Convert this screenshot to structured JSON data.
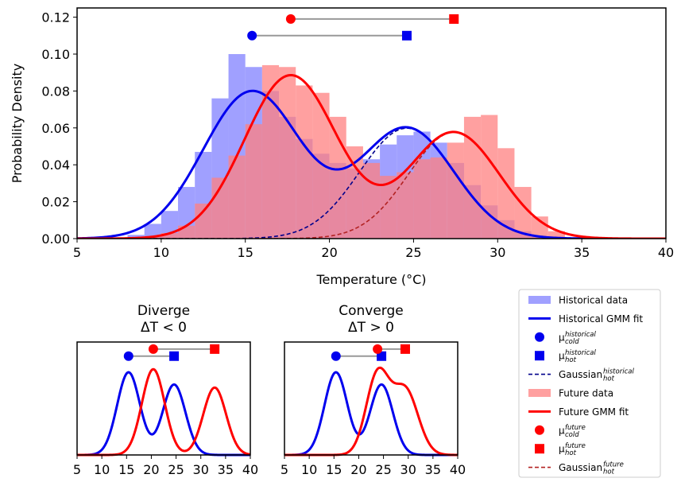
{
  "colors": {
    "historical": "#0000ee",
    "historical_hist": "#8080ff",
    "future": "#ff0000",
    "future_hist": "#ff8080",
    "historical_dashed": "#00008b",
    "future_dashed": "#b22222",
    "connector": "#999999"
  },
  "chart_data": [
    {
      "type": "bar",
      "title": "",
      "xlabel": "Temperature (°C)",
      "ylabel": "Probability Density",
      "xlim": [
        5,
        40
      ],
      "ylim": [
        0,
        0.125
      ],
      "xticks": [
        "5",
        "10",
        "15",
        "20",
        "25",
        "30",
        "35",
        "40"
      ],
      "yticks": [
        "0.00",
        "0.02",
        "0.04",
        "0.06",
        "0.08",
        "0.10",
        "0.12"
      ],
      "grid": false,
      "histogram_bin_width": 1,
      "series": [
        {
          "name": "Historical data",
          "kind": "histogram",
          "bins": [
            {
              "x0": 8,
              "x1": 9,
              "v": 0.002
            },
            {
              "x0": 9,
              "x1": 10,
              "v": 0.008
            },
            {
              "x0": 10,
              "x1": 11,
              "v": 0.015
            },
            {
              "x0": 11,
              "x1": 12,
              "v": 0.028
            },
            {
              "x0": 12,
              "x1": 13,
              "v": 0.047
            },
            {
              "x0": 13,
              "x1": 14,
              "v": 0.076
            },
            {
              "x0": 14,
              "x1": 15,
              "v": 0.1
            },
            {
              "x0": 15,
              "x1": 16,
              "v": 0.093
            },
            {
              "x0": 16,
              "x1": 17,
              "v": 0.08
            },
            {
              "x0": 17,
              "x1": 18,
              "v": 0.066
            },
            {
              "x0": 18,
              "x1": 19,
              "v": 0.054
            },
            {
              "x0": 19,
              "x1": 20,
              "v": 0.046
            },
            {
              "x0": 20,
              "x1": 21,
              "v": 0.041
            },
            {
              "x0": 21,
              "x1": 22,
              "v": 0.038
            },
            {
              "x0": 22,
              "x1": 23,
              "v": 0.043
            },
            {
              "x0": 23,
              "x1": 24,
              "v": 0.051
            },
            {
              "x0": 24,
              "x1": 25,
              "v": 0.056
            },
            {
              "x0": 25,
              "x1": 26,
              "v": 0.058
            },
            {
              "x0": 26,
              "x1": 27,
              "v": 0.052
            },
            {
              "x0": 27,
              "x1": 28,
              "v": 0.041
            },
            {
              "x0": 28,
              "x1": 29,
              "v": 0.029
            },
            {
              "x0": 29,
              "x1": 30,
              "v": 0.018
            },
            {
              "x0": 30,
              "x1": 31,
              "v": 0.01
            },
            {
              "x0": 31,
              "x1": 32,
              "v": 0.004
            },
            {
              "x0": 32,
              "x1": 33,
              "v": 0.001
            }
          ]
        },
        {
          "name": "Future data",
          "kind": "histogram",
          "bins": [
            {
              "x0": 9,
              "x1": 10,
              "v": 0.001
            },
            {
              "x0": 10,
              "x1": 11,
              "v": 0.003
            },
            {
              "x0": 11,
              "x1": 12,
              "v": 0.007
            },
            {
              "x0": 12,
              "x1": 13,
              "v": 0.019
            },
            {
              "x0": 13,
              "x1": 14,
              "v": 0.033
            },
            {
              "x0": 14,
              "x1": 15,
              "v": 0.045
            },
            {
              "x0": 15,
              "x1": 16,
              "v": 0.062
            },
            {
              "x0": 16,
              "x1": 17,
              "v": 0.094
            },
            {
              "x0": 17,
              "x1": 18,
              "v": 0.093
            },
            {
              "x0": 18,
              "x1": 19,
              "v": 0.083
            },
            {
              "x0": 19,
              "x1": 20,
              "v": 0.079
            },
            {
              "x0": 20,
              "x1": 21,
              "v": 0.066
            },
            {
              "x0": 21,
              "x1": 22,
              "v": 0.05
            },
            {
              "x0": 22,
              "x1": 23,
              "v": 0.041
            },
            {
              "x0": 23,
              "x1": 24,
              "v": 0.034
            },
            {
              "x0": 24,
              "x1": 25,
              "v": 0.036
            },
            {
              "x0": 25,
              "x1": 26,
              "v": 0.043
            },
            {
              "x0": 26,
              "x1": 27,
              "v": 0.044
            },
            {
              "x0": 27,
              "x1": 28,
              "v": 0.052
            },
            {
              "x0": 28,
              "x1": 29,
              "v": 0.066
            },
            {
              "x0": 29,
              "x1": 30,
              "v": 0.067
            },
            {
              "x0": 30,
              "x1": 31,
              "v": 0.049
            },
            {
              "x0": 31,
              "x1": 32,
              "v": 0.028
            },
            {
              "x0": 32,
              "x1": 33,
              "v": 0.012
            },
            {
              "x0": 33,
              "x1": 34,
              "v": 0.004
            }
          ]
        },
        {
          "name": "Historical GMM fit",
          "kind": "gmm",
          "components": [
            {
              "w": 0.58,
              "mu": 15.4,
              "sigma": 2.9
            },
            {
              "w": 0.42,
              "mu": 24.6,
              "sigma": 2.8
            }
          ]
        },
        {
          "name": "Future GMM fit",
          "kind": "gmm",
          "components": [
            {
              "w": 0.61,
              "mu": 17.7,
              "sigma": 2.75
            },
            {
              "w": 0.39,
              "mu": 27.4,
              "sigma": 2.7
            }
          ]
        },
        {
          "name": "Gaussian_hot^historical",
          "kind": "gaussian",
          "w": 0.42,
          "mu": 24.6,
          "sigma": 2.8
        },
        {
          "name": "Gaussian_hot^future",
          "kind": "gaussian",
          "w": 0.39,
          "mu": 27.4,
          "sigma": 2.7
        },
        {
          "name": "mu_cold^historical",
          "kind": "marker",
          "shape": "circle",
          "x": 15.4,
          "y": 0.11
        },
        {
          "name": "mu_hot^historical",
          "kind": "marker",
          "shape": "square",
          "x": 24.6,
          "y": 0.11
        },
        {
          "name": "mu_cold^future",
          "kind": "marker",
          "shape": "circle",
          "x": 17.7,
          "y": 0.119
        },
        {
          "name": "mu_hot^future",
          "kind": "marker",
          "shape": "square",
          "x": 27.4,
          "y": 0.119
        }
      ]
    },
    {
      "type": "line",
      "title": "Diverge",
      "subtitle": "ΔT < 0",
      "xlim": [
        5,
        40
      ],
      "ylim": [
        0,
        0.128
      ],
      "xticks": [
        "5",
        "10",
        "15",
        "20",
        "25",
        "30",
        "35",
        "40"
      ],
      "series": [
        {
          "name": "Historical",
          "kind": "gmm",
          "components": [
            {
              "w": 0.54,
              "mu": 15.4,
              "sigma": 2.3
            },
            {
              "w": 0.46,
              "mu": 24.6,
              "sigma": 2.3
            }
          ]
        },
        {
          "name": "Future",
          "kind": "gmm",
          "components": [
            {
              "w": 0.56,
              "mu": 20.4,
              "sigma": 2.3
            },
            {
              "w": 0.44,
              "mu": 32.8,
              "sigma": 2.3
            }
          ]
        },
        {
          "name": "mu_cold^historical",
          "kind": "marker",
          "shape": "circle",
          "x": 15.4,
          "y": 0.112
        },
        {
          "name": "mu_hot^historical",
          "kind": "marker",
          "shape": "square",
          "x": 24.6,
          "y": 0.112
        },
        {
          "name": "mu_cold^future",
          "kind": "marker",
          "shape": "circle",
          "x": 20.4,
          "y": 0.12
        },
        {
          "name": "mu_hot^future",
          "kind": "marker",
          "shape": "square",
          "x": 32.8,
          "y": 0.12
        }
      ]
    },
    {
      "type": "line",
      "title": "Converge",
      "subtitle": "ΔT > 0",
      "xlim": [
        5,
        40
      ],
      "ylim": [
        0,
        0.128
      ],
      "xticks": [
        "5",
        "10",
        "15",
        "20",
        "25",
        "30",
        "35",
        "40"
      ],
      "series": [
        {
          "name": "Historical",
          "kind": "gmm",
          "components": [
            {
              "w": 0.54,
              "mu": 15.4,
              "sigma": 2.3
            },
            {
              "w": 0.46,
              "mu": 24.6,
              "sigma": 2.3
            }
          ]
        },
        {
          "name": "Future",
          "kind": "gmm",
          "components": [
            {
              "w": 0.52,
              "mu": 23.8,
              "sigma": 2.3
            },
            {
              "w": 0.48,
              "mu": 29.4,
              "sigma": 2.6
            }
          ]
        },
        {
          "name": "mu_cold^historical",
          "kind": "marker",
          "shape": "circle",
          "x": 15.4,
          "y": 0.112
        },
        {
          "name": "mu_hot^historical",
          "kind": "marker",
          "shape": "square",
          "x": 24.6,
          "y": 0.112
        },
        {
          "name": "mu_cold^future",
          "kind": "marker",
          "shape": "circle",
          "x": 23.8,
          "y": 0.12
        },
        {
          "name": "mu_hot^future",
          "kind": "marker",
          "shape": "square",
          "x": 29.4,
          "y": 0.12
        }
      ]
    }
  ],
  "legend": {
    "placement": "lower-right",
    "entries": [
      {
        "kind": "patch",
        "color": "historical_hist",
        "label": "Historical data"
      },
      {
        "kind": "line",
        "color": "historical",
        "label": "Historical GMM fit"
      },
      {
        "kind": "circle",
        "color": "historical",
        "label_main": "μ",
        "label_sub": "cold",
        "label_sup": "historical"
      },
      {
        "kind": "square",
        "color": "historical",
        "label_main": "μ",
        "label_sub": "hot",
        "label_sup": "historical"
      },
      {
        "kind": "dashed",
        "color": "historical_dashed",
        "label_main": "Gaussian",
        "label_sub": "hot",
        "label_sup": "historical"
      },
      {
        "kind": "patch",
        "color": "future_hist",
        "label": "Future data"
      },
      {
        "kind": "line",
        "color": "future",
        "label": "Future GMM fit"
      },
      {
        "kind": "circle",
        "color": "future",
        "label_main": "μ",
        "label_sub": "cold",
        "label_sup": "future"
      },
      {
        "kind": "square",
        "color": "future",
        "label_main": "μ",
        "label_sub": "hot",
        "label_sup": "future"
      },
      {
        "kind": "dashed",
        "color": "future_dashed",
        "label_main": "Gaussian",
        "label_sub": "hot",
        "label_sup": "future"
      }
    ]
  }
}
